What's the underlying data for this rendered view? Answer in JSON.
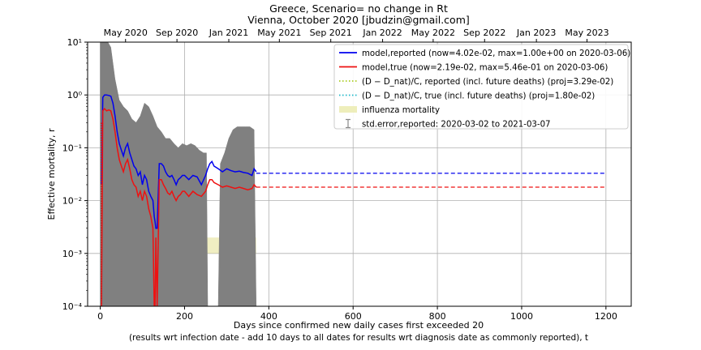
{
  "chart_data": {
    "type": "line",
    "title": "Greece, Scenario= no change in Rt",
    "subtitle": "Vienna, October 2020 [jbudzin@gmail.com]",
    "xlabel": "Days since confirmed new daily cases first exceeded 20",
    "xlabel_line2": "(results wrt infection date - add 10 days to all dates for results wrt diagnosis date as commonly reported), t",
    "ylabel": "Effective mortality, r",
    "xlim": [
      -30,
      1260
    ],
    "ylim": [
      0.0001,
      10
    ],
    "yscale": "log",
    "grid": true,
    "legend_position": "top-right",
    "x_ticks": [
      0,
      200,
      400,
      600,
      800,
      1000,
      1200
    ],
    "x_tick_labels": [
      "0",
      "200",
      "400",
      "600",
      "800",
      "1000",
      "1200"
    ],
    "y_ticks": [
      0.0001,
      0.001,
      0.01,
      0.1,
      1,
      10
    ],
    "y_tick_labels": [
      "10⁻⁴",
      "10⁻³",
      "10⁻²",
      "10⁻¹",
      "10⁰",
      "10¹"
    ],
    "top_axis": {
      "ticks": [
        60,
        182,
        305,
        425,
        547,
        670,
        790,
        912,
        1035,
        1155
      ],
      "labels": [
        "May 2020",
        "Sep 2020",
        "Jan 2021",
        "May 2021",
        "Sep 2021",
        "Jan 2022",
        "May 2022",
        "Sep 2022",
        "Jan 2023",
        "May 2023"
      ]
    },
    "legend": [
      {
        "label": "model,reported (now=4.02e-02, max=1.00e+00 on 2020-03-06)",
        "color": "#0000ee",
        "style": "solid"
      },
      {
        "label": "model,true (now=2.19e-02, max=5.46e-01 on 2020-03-06)",
        "color": "#ee1111",
        "style": "solid"
      },
      {
        "label": "(D − D_nat)/C, reported (incl. future deaths) (proj=3.29e-02)",
        "color": "#aacc22",
        "style": "dotted"
      },
      {
        "label": "(D − D_nat)/C, true (incl. future deaths) (proj=1.80e-02)",
        "color": "#22bbcc",
        "style": "dotted"
      },
      {
        "label": "influenza mortality",
        "color": "#eeeebb",
        "style": "band"
      },
      {
        "label": "std.error,reported: 2020-03-02 to 2021-03-07",
        "color": "#888888",
        "style": "errorbar"
      }
    ],
    "influenza_band": {
      "x": [
        0,
        370
      ],
      "y": [
        0.001,
        0.002
      ]
    },
    "series": [
      {
        "name": "model,reported",
        "color": "#0000ee",
        "x": [
          3,
          6,
          10,
          15,
          20,
          25,
          30,
          35,
          40,
          45,
          50,
          55,
          60,
          65,
          70,
          75,
          80,
          85,
          90,
          95,
          100,
          105,
          110,
          115,
          120,
          125,
          128,
          130,
          132,
          135,
          140,
          145,
          150,
          155,
          160,
          165,
          170,
          175,
          180,
          185,
          190,
          195,
          200,
          210,
          220,
          230,
          240,
          250,
          255,
          260,
          265,
          270,
          280,
          290,
          300,
          310,
          320,
          330,
          340,
          350,
          360,
          365,
          370
        ],
        "y": [
          0.02,
          0.9,
          1.0,
          1.0,
          0.98,
          0.95,
          0.7,
          0.4,
          0.2,
          0.12,
          0.09,
          0.07,
          0.1,
          0.12,
          0.08,
          0.06,
          0.045,
          0.04,
          0.03,
          0.035,
          0.02,
          0.03,
          0.025,
          0.015,
          0.012,
          0.01,
          0.005,
          0.004,
          0.003,
          0.003,
          0.05,
          0.05,
          0.045,
          0.035,
          0.03,
          0.028,
          0.03,
          0.025,
          0.02,
          0.025,
          0.027,
          0.03,
          0.03,
          0.025,
          0.03,
          0.028,
          0.02,
          0.03,
          0.04,
          0.05,
          0.055,
          0.045,
          0.04,
          0.035,
          0.04,
          0.037,
          0.035,
          0.036,
          0.034,
          0.033,
          0.03,
          0.04,
          0.035
        ]
      },
      {
        "name": "model,true",
        "color": "#ee1111",
        "x": [
          3,
          6,
          10,
          15,
          20,
          25,
          30,
          35,
          40,
          45,
          50,
          55,
          60,
          65,
          70,
          75,
          80,
          85,
          90,
          95,
          100,
          105,
          110,
          115,
          120,
          125,
          128,
          130,
          132,
          135,
          140,
          145,
          150,
          155,
          160,
          165,
          170,
          175,
          180,
          185,
          190,
          195,
          200,
          210,
          220,
          230,
          240,
          250,
          255,
          260,
          265,
          270,
          280,
          290,
          300,
          310,
          320,
          330,
          340,
          350,
          360,
          365,
          370
        ],
        "y": [
          0.0001,
          0.5,
          0.55,
          0.5,
          0.52,
          0.5,
          0.35,
          0.2,
          0.1,
          0.06,
          0.045,
          0.035,
          0.05,
          0.06,
          0.04,
          0.025,
          0.02,
          0.018,
          0.012,
          0.015,
          0.01,
          0.015,
          0.012,
          0.007,
          0.005,
          0.003,
          0.0001,
          0.0001,
          0.002,
          0.0001,
          0.025,
          0.025,
          0.02,
          0.017,
          0.014,
          0.013,
          0.015,
          0.012,
          0.01,
          0.012,
          0.013,
          0.015,
          0.015,
          0.012,
          0.015,
          0.013,
          0.012,
          0.015,
          0.02,
          0.025,
          0.025,
          0.022,
          0.02,
          0.018,
          0.019,
          0.018,
          0.017,
          0.018,
          0.017,
          0.016,
          0.017,
          0.02,
          0.018
        ]
      },
      {
        "name": "model,reported projection",
        "color": "#0000ee",
        "dash": true,
        "x": [
          370,
          1200
        ],
        "y": [
          0.0329,
          0.0329
        ]
      },
      {
        "name": "model,true projection",
        "color": "#ee1111",
        "dash": true,
        "x": [
          370,
          1200
        ],
        "y": [
          0.018,
          0.018
        ]
      }
    ],
    "error_band": {
      "color": "#808080",
      "x": [
        0,
        5,
        8,
        12,
        18,
        25,
        35,
        45,
        55,
        65,
        75,
        85,
        95,
        105,
        115,
        125,
        135,
        145,
        155,
        165,
        175,
        185,
        195,
        205,
        215,
        225,
        235,
        245,
        252,
        255,
        280,
        285,
        295,
        305,
        315,
        325,
        335,
        345,
        355,
        365,
        370
      ],
      "upper": [
        10,
        10,
        10,
        10,
        10,
        8,
        2,
        0.8,
        0.6,
        0.5,
        0.35,
        0.3,
        0.4,
        0.7,
        0.6,
        0.4,
        0.25,
        0.2,
        0.15,
        0.15,
        0.12,
        0.1,
        0.12,
        0.11,
        0.12,
        0.11,
        0.09,
        0.08,
        0.08,
        0.0001,
        0.0001,
        0.05,
        0.08,
        0.15,
        0.22,
        0.25,
        0.25,
        0.25,
        0.25,
        0.22,
        0.0001
      ],
      "lower": [
        0.0001,
        0.0001,
        0.0001,
        0.0001,
        0.0001,
        0.0001,
        0.0001,
        0.0001,
        0.0001,
        0.0001,
        0.0001,
        0.0001,
        0.0001,
        0.0001,
        0.0001,
        0.0001,
        0.0001,
        0.0001,
        0.0001,
        0.0001,
        0.0001,
        0.0001,
        0.0001,
        0.0001,
        0.0001,
        0.0001,
        0.0001,
        0.0001,
        0.0001,
        0.0001,
        0.0001,
        0.0001,
        0.0001,
        0.0001,
        0.0001,
        0.0001,
        0.0001,
        0.0001,
        0.0001,
        0.0001,
        0.0001
      ]
    }
  }
}
